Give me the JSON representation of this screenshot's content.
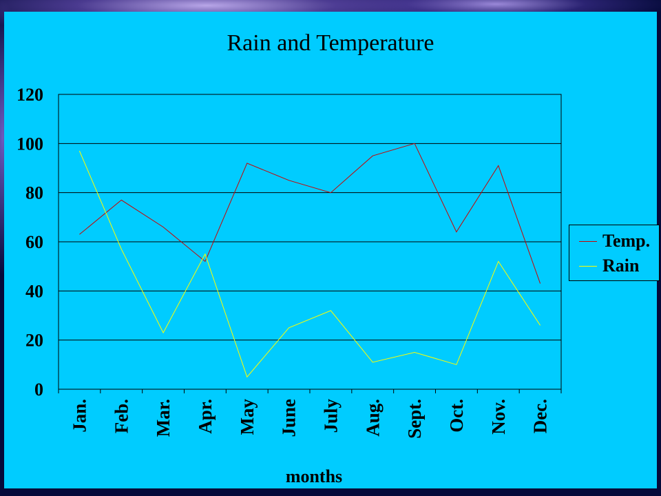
{
  "chart_data": {
    "type": "line",
    "title": "Rain and Temperature",
    "xlabel": "months",
    "ylabel": "",
    "ylim": [
      0,
      120
    ],
    "yticks": [
      0,
      20,
      40,
      60,
      80,
      100,
      120
    ],
    "grid": true,
    "legend_position": "right",
    "categories": [
      "Jan.",
      "Feb.",
      "Mar.",
      "Apr.",
      "May",
      "June",
      "July",
      "Aug.",
      "Sept.",
      "Oct.",
      "Nov.",
      "Dec."
    ],
    "series": [
      {
        "name": "Temp.",
        "color": "#cc0000",
        "values": [
          63,
          77,
          66,
          52,
          92,
          85,
          80,
          95,
          100,
          64,
          91,
          43
        ]
      },
      {
        "name": "Rain",
        "color": "#ffff00",
        "values": [
          97,
          57,
          23,
          55,
          5,
          25,
          32,
          11,
          15,
          10,
          52,
          26
        ]
      }
    ]
  },
  "colors": {
    "plot_background": "#00ccff",
    "page_background": "#050a3a"
  }
}
